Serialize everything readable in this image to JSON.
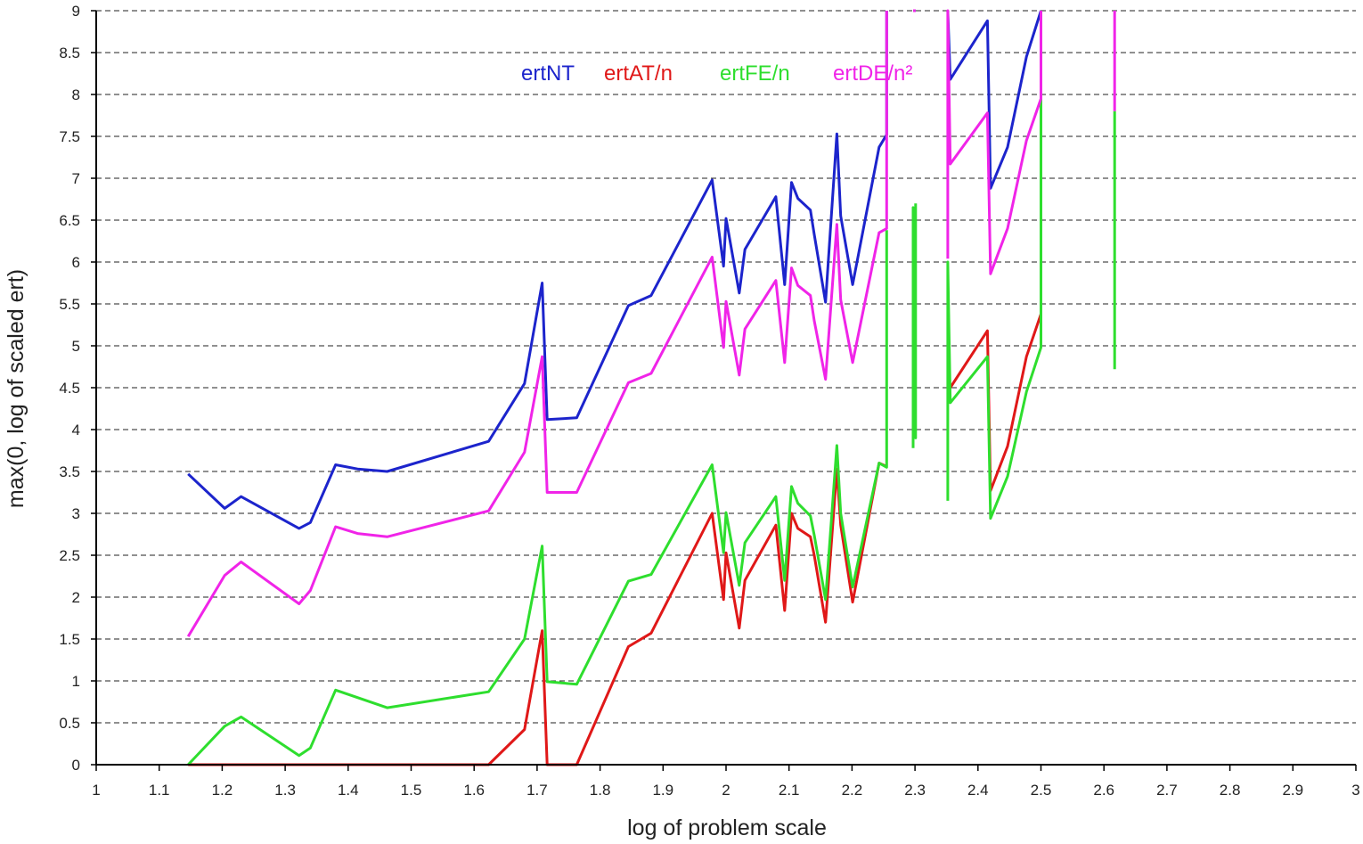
{
  "chart_data": {
    "type": "line",
    "xlabel": "log of problem scale",
    "ylabel": "max(0, log of scaled ert)",
    "xlim": [
      1,
      3
    ],
    "ylim": [
      0,
      9
    ],
    "x_ticks": [
      "1",
      "1.1",
      "1.2",
      "1.3",
      "1.4",
      "1.5",
      "1.6",
      "1.7",
      "1.8",
      "1.9",
      "2",
      "2.1",
      "2.2",
      "2.3",
      "2.4",
      "2.5",
      "2.6",
      "2.7",
      "2.8",
      "2.9",
      "3"
    ],
    "y_ticks": [
      "0",
      "0.5",
      "1",
      "1.5",
      "2",
      "2.5",
      "3",
      "3.5",
      "4",
      "4.5",
      "5",
      "5.5",
      "6",
      "6.5",
      "7",
      "7.5",
      "8",
      "8.5",
      "9"
    ],
    "grid": true,
    "legend_position": "top",
    "series": [
      {
        "name": "ertNT",
        "color": "#1c24cc",
        "points": [
          [
            1.146,
            3.47
          ],
          [
            1.204,
            3.06
          ],
          [
            1.23,
            3.2
          ],
          [
            1.322,
            2.82
          ],
          [
            1.34,
            2.89
          ],
          [
            1.38,
            3.58
          ],
          [
            1.415,
            3.53
          ],
          [
            1.462,
            3.5
          ],
          [
            1.623,
            3.86
          ],
          [
            1.68,
            4.55
          ],
          [
            1.708,
            5.75
          ],
          [
            1.716,
            4.12
          ],
          [
            1.763,
            4.14
          ],
          [
            1.845,
            5.48
          ],
          [
            1.881,
            5.6
          ],
          [
            1.978,
            6.98
          ],
          [
            1.996,
            5.95
          ],
          [
            2.0,
            6.52
          ],
          [
            2.021,
            5.63
          ],
          [
            2.03,
            6.15
          ],
          [
            2.079,
            6.78
          ],
          [
            2.093,
            5.73
          ],
          [
            2.104,
            6.95
          ],
          [
            2.114,
            6.76
          ],
          [
            2.134,
            6.62
          ],
          [
            2.14,
            6.33
          ],
          [
            2.158,
            5.52
          ],
          [
            2.176,
            7.53
          ],
          [
            2.182,
            6.55
          ],
          [
            2.201,
            5.73
          ],
          [
            2.243,
            7.37
          ],
          [
            2.255,
            7.52
          ],
          [
            2.255,
            9.0
          ],
          [
            null,
            null
          ],
          [
            2.297,
            9.0
          ],
          [
            2.301,
            9.0
          ],
          [
            null,
            null
          ],
          [
            2.352,
            9.0
          ],
          [
            2.356,
            8.18
          ],
          [
            2.415,
            8.88
          ],
          [
            2.42,
            6.88
          ],
          [
            2.447,
            7.37
          ],
          [
            2.477,
            8.45
          ],
          [
            2.5,
            9.0
          ]
        ]
      },
      {
        "name": "ertAT/n",
        "color": "#e01818",
        "points": [
          [
            1.146,
            0
          ],
          [
            1.623,
            0
          ],
          [
            1.68,
            0.42
          ],
          [
            1.708,
            1.6
          ],
          [
            1.716,
            0
          ],
          [
            1.763,
            0
          ],
          [
            1.845,
            1.41
          ],
          [
            1.881,
            1.57
          ],
          [
            1.978,
            3.0
          ],
          [
            1.996,
            1.97
          ],
          [
            2.0,
            2.53
          ],
          [
            2.021,
            1.63
          ],
          [
            2.03,
            2.2
          ],
          [
            2.079,
            2.86
          ],
          [
            2.093,
            1.84
          ],
          [
            2.104,
            3.0
          ],
          [
            2.114,
            2.82
          ],
          [
            2.134,
            2.72
          ],
          [
            2.14,
            2.5
          ],
          [
            2.158,
            1.7
          ],
          [
            2.176,
            3.53
          ],
          [
            2.182,
            2.86
          ],
          [
            2.201,
            1.94
          ],
          [
            2.243,
            3.6
          ],
          [
            2.255,
            3.56
          ],
          [
            null,
            null
          ],
          [
            2.352,
            4.48
          ],
          [
            2.356,
            4.5
          ],
          [
            2.415,
            5.18
          ],
          [
            2.42,
            3.27
          ],
          [
            2.447,
            3.8
          ],
          [
            2.477,
            4.87
          ],
          [
            2.5,
            5.38
          ]
        ]
      },
      {
        "name": "ertFE/n",
        "color": "#2ede2e",
        "points": [
          [
            1.146,
            0
          ],
          [
            1.204,
            0.46
          ],
          [
            1.23,
            0.57
          ],
          [
            1.322,
            0.11
          ],
          [
            1.34,
            0.2
          ],
          [
            1.38,
            0.89
          ],
          [
            1.462,
            0.68
          ],
          [
            1.623,
            0.87
          ],
          [
            1.68,
            1.5
          ],
          [
            1.708,
            2.61
          ],
          [
            1.716,
            0.99
          ],
          [
            1.763,
            0.96
          ],
          [
            1.845,
            2.19
          ],
          [
            1.881,
            2.27
          ],
          [
            1.978,
            3.58
          ],
          [
            1.996,
            2.53
          ],
          [
            2.0,
            3.01
          ],
          [
            2.021,
            2.14
          ],
          [
            2.03,
            2.65
          ],
          [
            2.079,
            3.2
          ],
          [
            2.093,
            2.2
          ],
          [
            2.104,
            3.32
          ],
          [
            2.114,
            3.12
          ],
          [
            2.134,
            2.97
          ],
          [
            2.14,
            2.74
          ],
          [
            2.158,
            1.97
          ],
          [
            2.176,
            3.81
          ],
          [
            2.182,
            3.0
          ],
          [
            2.201,
            2.12
          ],
          [
            2.243,
            3.6
          ],
          [
            2.255,
            3.55
          ],
          [
            2.255,
            6.38
          ],
          [
            null,
            null
          ],
          [
            2.297,
            3.78
          ],
          [
            2.297,
            6.65
          ],
          [
            2.301,
            3.9
          ],
          [
            2.301,
            6.7
          ],
          [
            null,
            null
          ],
          [
            2.352,
            3.15
          ],
          [
            2.352,
            6.0
          ],
          [
            2.356,
            4.32
          ],
          [
            2.415,
            4.87
          ],
          [
            2.42,
            2.94
          ],
          [
            2.447,
            3.44
          ],
          [
            2.477,
            4.45
          ],
          [
            2.5,
            4.98
          ],
          [
            2.5,
            7.95
          ],
          [
            null,
            null
          ],
          [
            2.617,
            4.72
          ],
          [
            2.617,
            7.8
          ]
        ]
      },
      {
        "name": "ertDE/n²",
        "color": "#f024e8",
        "points": [
          [
            1.146,
            1.53
          ],
          [
            1.204,
            2.26
          ],
          [
            1.23,
            2.42
          ],
          [
            1.322,
            1.92
          ],
          [
            1.34,
            2.08
          ],
          [
            1.38,
            2.84
          ],
          [
            1.415,
            2.76
          ],
          [
            1.462,
            2.72
          ],
          [
            1.623,
            3.03
          ],
          [
            1.68,
            3.73
          ],
          [
            1.708,
            4.87
          ],
          [
            1.716,
            3.25
          ],
          [
            1.763,
            3.25
          ],
          [
            1.845,
            4.56
          ],
          [
            1.881,
            4.67
          ],
          [
            1.978,
            6.06
          ],
          [
            1.996,
            4.98
          ],
          [
            2.0,
            5.53
          ],
          [
            2.021,
            4.65
          ],
          [
            2.03,
            5.2
          ],
          [
            2.079,
            5.78
          ],
          [
            2.093,
            4.8
          ],
          [
            2.104,
            5.93
          ],
          [
            2.114,
            5.72
          ],
          [
            2.134,
            5.6
          ],
          [
            2.14,
            5.3
          ],
          [
            2.158,
            4.6
          ],
          [
            2.176,
            6.45
          ],
          [
            2.182,
            5.55
          ],
          [
            2.201,
            4.8
          ],
          [
            2.243,
            6.35
          ],
          [
            2.255,
            6.4
          ],
          [
            2.255,
            9.0
          ],
          [
            null,
            null
          ],
          [
            2.297,
            9.0
          ],
          [
            2.301,
            9.0
          ],
          [
            null,
            null
          ],
          [
            2.352,
            6.04
          ],
          [
            2.352,
            9.0
          ],
          [
            2.356,
            7.17
          ],
          [
            2.415,
            7.78
          ],
          [
            2.42,
            5.86
          ],
          [
            2.447,
            6.4
          ],
          [
            2.477,
            7.45
          ],
          [
            2.5,
            7.95
          ],
          [
            2.5,
            9.0
          ],
          [
            null,
            null
          ],
          [
            2.617,
            7.8
          ],
          [
            2.617,
            9.0
          ]
        ]
      }
    ]
  }
}
